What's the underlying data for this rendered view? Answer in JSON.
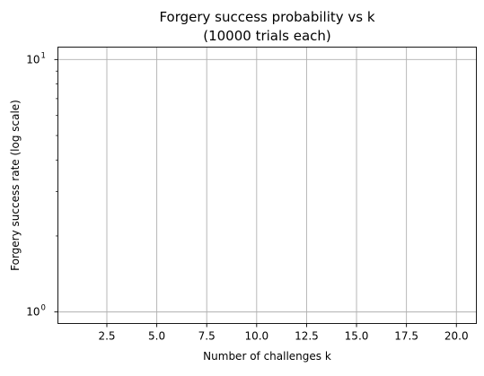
{
  "chart_data": {
    "type": "line",
    "title": "Forgery success probability vs k",
    "subtitle": "(10000 trials each)",
    "xlabel": "Number of challenges k",
    "ylabel": "Forgery success rate (log scale)",
    "xlim": [
      0.05,
      21.0
    ],
    "ylim": [
      0.9,
      11.2
    ],
    "y_scale": "log",
    "grid": true,
    "x_ticks": [
      2.5,
      5.0,
      7.5,
      10.0,
      12.5,
      15.0,
      17.5,
      20.0
    ],
    "x_tick_labels": [
      "2.5",
      "5.0",
      "7.5",
      "10.0",
      "12.5",
      "15.0",
      "17.5",
      "20.0"
    ],
    "y_major_ticks": [
      1,
      10
    ],
    "y_major_tick_labels": [
      {
        "base": "10",
        "exp": "0"
      },
      {
        "base": "10",
        "exp": "1"
      }
    ],
    "y_minor_ticks": [
      2,
      3,
      4,
      5,
      6,
      7,
      8,
      9
    ],
    "series": [
      {
        "values": []
      }
    ],
    "colors": {
      "grid": "#b0b0b0",
      "axes": "#000000",
      "background": "#ffffff"
    }
  }
}
